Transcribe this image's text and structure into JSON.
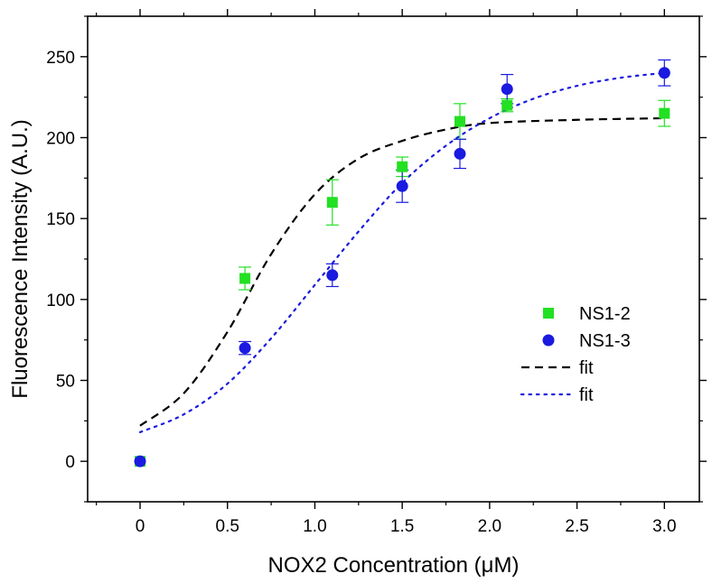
{
  "chart_data": {
    "type": "scatter",
    "xlabel": "NOX2 Concentration (μM)",
    "ylabel": "Fluorescence Intensity (A.U.)",
    "xlim": [
      -0.3,
      3.2
    ],
    "ylim": [
      -25,
      275
    ],
    "xticks": [
      0,
      0.5,
      1.0,
      1.5,
      2.0,
      2.5,
      3.0
    ],
    "xtick_labels": [
      "0",
      "0.5",
      "1.0",
      "1.5",
      "2.0",
      "2.5",
      "3.0"
    ],
    "yticks": [
      0,
      50,
      100,
      150,
      200,
      250
    ],
    "ytick_labels": [
      "0",
      "50",
      "100",
      "150",
      "200",
      "250"
    ],
    "grid": false,
    "legend_position": "right-center",
    "series": [
      {
        "name": "NS1-2",
        "marker": "square",
        "color": "#22e022",
        "x": [
          0,
          0.6,
          1.1,
          1.5,
          1.83,
          2.1,
          3.0
        ],
        "y": [
          0,
          113,
          160,
          182,
          210,
          220,
          215
        ],
        "err": [
          0,
          7,
          14,
          6,
          11,
          4,
          8
        ]
      },
      {
        "name": "NS1-3",
        "marker": "circle",
        "color": "#1a1ae0",
        "x": [
          0,
          0.6,
          1.1,
          1.5,
          1.83,
          2.1,
          3.0
        ],
        "y": [
          0,
          70,
          115,
          170,
          190,
          230,
          240
        ],
        "err": [
          0,
          4,
          7,
          10,
          9,
          9,
          8
        ]
      },
      {
        "name": "fit",
        "style": "dashed",
        "color": "#000000",
        "x": [
          0,
          0.25,
          0.5,
          0.75,
          1.0,
          1.25,
          1.5,
          1.75,
          2.0,
          2.5,
          3.0
        ],
        "y": [
          22,
          42,
          80,
          128,
          165,
          187,
          198,
          205,
          209,
          211,
          212
        ]
      },
      {
        "name": "fit",
        "style": "dotted",
        "color": "#1a1ae0",
        "x": [
          0,
          0.25,
          0.5,
          0.75,
          1.0,
          1.25,
          1.5,
          1.75,
          2.0,
          2.25,
          2.5,
          2.75,
          3.0
        ],
        "y": [
          18,
          29,
          48,
          76,
          109,
          142,
          172,
          195,
          212,
          224,
          232,
          237,
          240
        ]
      }
    ]
  }
}
